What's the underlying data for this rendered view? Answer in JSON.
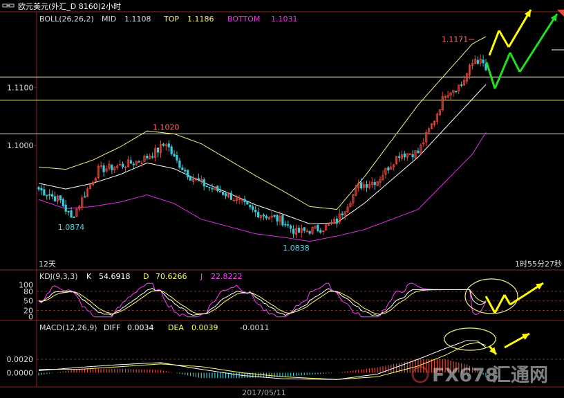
{
  "window": {
    "title_text": "欧元美元(外汇_D 8160)2小时",
    "title_icon": "link-icon"
  },
  "colors": {
    "background": "#000000",
    "axis": "#8a2a2a",
    "up": "#e8463a",
    "down": "#3ec9d6",
    "mid": "#ffffff",
    "top": "#f2f28a",
    "bottom": "#e030e0",
    "hline": "#f5f0b0",
    "label_boll_name": "#dddddd",
    "label_mid": "#f2f28a",
    "label_bottom": "#e040e0",
    "annotation_red": "#ff6b6b",
    "annotation_cyan": "#4fd8e8",
    "yellow_arrow": "#ffff00",
    "green_arrow": "#22dd22",
    "kdj_k": "#ffffff",
    "kdj_d": "#ffff66",
    "kdj_j": "#ff40ff",
    "macd_diff": "#ffffff",
    "macd_dea": "#ffff66"
  },
  "chart_data": [
    {
      "type": "candlestick",
      "legend": {
        "name": "BOLL(26,26,2)",
        "mid_label": "MID",
        "mid_value": "1.1108",
        "top_label": "TOP",
        "top_value": "1.1186",
        "bottom_label": "BOTTOM",
        "bottom_value": "1.1031"
      },
      "y_ticks": [
        "1.1100",
        "1.1000"
      ],
      "y_tick_values": [
        1.11,
        1.1
      ],
      "ylim": [
        1.08,
        1.121
      ],
      "horizontal_levels": [
        1.1118,
        1.1078,
        1.102
      ],
      "annotations": [
        {
          "text": "1.1171",
          "value": 1.1171,
          "bar": 161
        },
        {
          "text": "1.1020",
          "value": 1.102,
          "bar": 47
        },
        {
          "text": "1.0874",
          "value": 1.0874,
          "bar": 12
        },
        {
          "text": "1.0838",
          "value": 1.0838,
          "bar": 95
        }
      ],
      "corner_left_text": "12天",
      "corner_right_text": "1时55分27秒",
      "bar_count": 166,
      "anchors": [
        [
          0,
          1.0925
        ],
        [
          8,
          1.0905
        ],
        [
          12,
          1.0874
        ],
        [
          22,
          1.0958
        ],
        [
          30,
          1.0965
        ],
        [
          38,
          1.0975
        ],
        [
          44,
          1.0992
        ],
        [
          47,
          1.1005
        ],
        [
          50,
          1.0978
        ],
        [
          56,
          1.0946
        ],
        [
          62,
          1.093
        ],
        [
          70,
          1.0915
        ],
        [
          80,
          1.0885
        ],
        [
          90,
          1.087
        ],
        [
          95,
          1.085
        ],
        [
          105,
          1.0858
        ],
        [
          110,
          1.087
        ],
        [
          118,
          1.093
        ],
        [
          125,
          1.094
        ],
        [
          133,
          1.0985
        ],
        [
          140,
          1.0988
        ],
        [
          146,
          1.1045
        ],
        [
          150,
          1.109
        ],
        [
          156,
          1.1105
        ],
        [
          161,
          1.115
        ],
        [
          164,
          1.114
        ],
        [
          166,
          1.112
        ]
      ],
      "mid_anchors": [
        [
          0,
          1.0935
        ],
        [
          10,
          1.0925
        ],
        [
          20,
          1.0935
        ],
        [
          30,
          1.095
        ],
        [
          40,
          1.097
        ],
        [
          50,
          1.096
        ],
        [
          60,
          1.0938
        ],
        [
          70,
          1.0918
        ],
        [
          80,
          1.0898
        ],
        [
          90,
          1.0882
        ],
        [
          100,
          1.0865
        ],
        [
          110,
          1.0867
        ],
        [
          120,
          1.09
        ],
        [
          130,
          1.094
        ],
        [
          140,
          1.098
        ],
        [
          150,
          1.103
        ],
        [
          160,
          1.108
        ],
        [
          166,
          1.111
        ]
      ],
      "band_half_anchors": [
        [
          0,
          0.0028
        ],
        [
          20,
          0.004
        ],
        [
          40,
          0.0055
        ],
        [
          60,
          0.0065
        ],
        [
          80,
          0.005
        ],
        [
          100,
          0.003
        ],
        [
          110,
          0.0023
        ],
        [
          120,
          0.0045
        ],
        [
          140,
          0.009
        ],
        [
          160,
          0.0095
        ],
        [
          166,
          0.008
        ]
      ]
    },
    {
      "type": "line",
      "legend": {
        "name": "KDJ(9,3,3)",
        "k_label": "K",
        "k_value": "54.6918",
        "d_label": "D",
        "d_value": "70.6266",
        "j_label": "J",
        "j_value": "22.8222"
      },
      "y_ticks": [
        "100",
        "80",
        "50",
        "20",
        "0"
      ],
      "y_tick_values": [
        100,
        80,
        50,
        20,
        0
      ],
      "ylim": [
        -5,
        110
      ]
    },
    {
      "type": "bar",
      "legend": {
        "name": "MACD(12,26,9)",
        "diff_label": "DIFF",
        "diff_value": "0.0034",
        "dea_label": "DEA",
        "dea_value": "0.0039",
        "macd_value": "-0.0011"
      },
      "y_ticks": [
        "0.0020",
        "0.0000"
      ],
      "y_tick_values": [
        0.002,
        0.0
      ],
      "ylim": [
        -0.0018,
        0.0058
      ],
      "x_label": "2017/05/11"
    }
  ],
  "watermark": {
    "text_latin": "FX678",
    "text_cn": "汇通网"
  }
}
